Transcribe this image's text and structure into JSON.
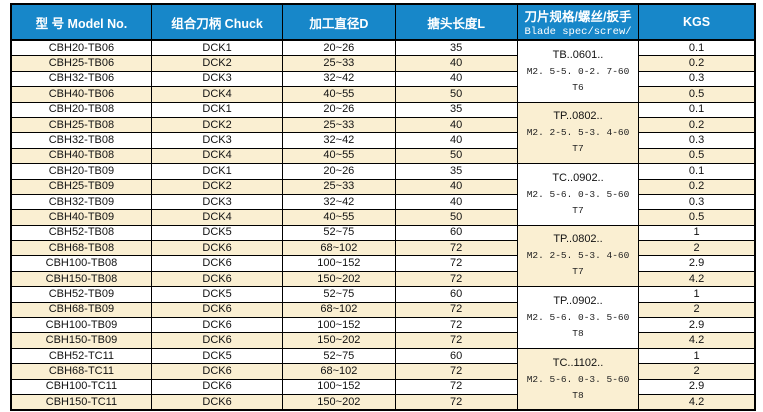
{
  "colors": {
    "header_bg": "#1787C9",
    "stripe_bg": "#FAEFD2",
    "border": "#000000"
  },
  "table": {
    "columns": [
      {
        "label": "型 号 Model No."
      },
      {
        "label": "组合刀柄 Chuck"
      },
      {
        "label": "加工直径D"
      },
      {
        "label": "搪头长度L"
      },
      {
        "label": "刀片规格/螺丝/扳手",
        "sublabel": "Blade spec/screw/"
      },
      {
        "label": "KGS"
      }
    ],
    "spec_groups": [
      {
        "blade": "TB..0601..",
        "screw": "M2. 5-5. 0-2. 7-60",
        "wrench": "T6",
        "rows": 4,
        "shaded": false
      },
      {
        "blade": "TP..0802..",
        "screw": "M2. 2-5. 5-3. 4-60",
        "wrench": "T7",
        "rows": 4,
        "shaded": true
      },
      {
        "blade": "TC..0902..",
        "screw": "M2. 5-6. 0-3. 5-60",
        "wrench": "T7",
        "rows": 4,
        "shaded": false
      },
      {
        "blade": "TP..0802..",
        "screw": "M2. 2-5. 5-3. 4-60",
        "wrench": "T7",
        "rows": 4,
        "shaded": true
      },
      {
        "blade": "TP..0902..",
        "screw": "M2. 5-6. 0-3. 5-60",
        "wrench": "T8",
        "rows": 4,
        "shaded": false
      },
      {
        "blade": "TC..1102..",
        "screw": "M2. 5-6. 0-3. 5-60",
        "wrench": "T8",
        "rows": 4,
        "shaded": true
      }
    ],
    "rows": [
      {
        "model": "CBH20-TB06",
        "chuck": "DCK1",
        "diameter": "20~26",
        "length": "35",
        "kgs": "0.1"
      },
      {
        "model": "CBH25-TB06",
        "chuck": "DCK2",
        "diameter": "25~33",
        "length": "40",
        "kgs": "0.2"
      },
      {
        "model": "CBH32-TB06",
        "chuck": "DCK3",
        "diameter": "32~42",
        "length": "40",
        "kgs": "0.3"
      },
      {
        "model": "CBH40-TB06",
        "chuck": "DCK4",
        "diameter": "40~55",
        "length": "50",
        "kgs": "0.5"
      },
      {
        "model": "CBH20-TB08",
        "chuck": "DCK1",
        "diameter": "20~26",
        "length": "35",
        "kgs": "0.1"
      },
      {
        "model": "CBH25-TB08",
        "chuck": "DCK2",
        "diameter": "25~33",
        "length": "40",
        "kgs": "0.2"
      },
      {
        "model": "CBH32-TB08",
        "chuck": "DCK3",
        "diameter": "32~42",
        "length": "40",
        "kgs": "0.3"
      },
      {
        "model": "CBH40-TB08",
        "chuck": "DCK4",
        "diameter": "40~55",
        "length": "50",
        "kgs": "0.5"
      },
      {
        "model": "CBH20-TB09",
        "chuck": "DCK1",
        "diameter": "20~26",
        "length": "35",
        "kgs": "0.1"
      },
      {
        "model": "CBH25-TB09",
        "chuck": "DCK2",
        "diameter": "25~33",
        "length": "40",
        "kgs": "0.2"
      },
      {
        "model": "CBH32-TB09",
        "chuck": "DCK3",
        "diameter": "32~42",
        "length": "40",
        "kgs": "0.3"
      },
      {
        "model": "CBH40-TB09",
        "chuck": "DCK4",
        "diameter": "40~55",
        "length": "50",
        "kgs": "0.5"
      },
      {
        "model": "CBH52-TB08",
        "chuck": "DCK5",
        "diameter": "52~75",
        "length": "60",
        "kgs": "1"
      },
      {
        "model": "CBH68-TB08",
        "chuck": "DCK6",
        "diameter": "68~102",
        "length": "72",
        "kgs": "2"
      },
      {
        "model": "CBH100-TB08",
        "chuck": "DCK6",
        "diameter": "100~152",
        "length": "72",
        "kgs": "2.9"
      },
      {
        "model": "CBH150-TB08",
        "chuck": "DCK6",
        "diameter": "150~202",
        "length": "72",
        "kgs": "4.2"
      },
      {
        "model": "CBH52-TB09",
        "chuck": "DCK5",
        "diameter": "52~75",
        "length": "60",
        "kgs": "1"
      },
      {
        "model": "CBH68-TB09",
        "chuck": "DCK6",
        "diameter": "68~102",
        "length": "72",
        "kgs": "2"
      },
      {
        "model": "CBH100-TB09",
        "chuck": "DCK6",
        "diameter": "100~152",
        "length": "72",
        "kgs": "2.9"
      },
      {
        "model": "CBH150-TB09",
        "chuck": "DCK6",
        "diameter": "150~202",
        "length": "72",
        "kgs": "4.2"
      },
      {
        "model": "CBH52-TC11",
        "chuck": "DCK5",
        "diameter": "52~75",
        "length": "60",
        "kgs": "1"
      },
      {
        "model": "CBH68-TC11",
        "chuck": "DCK6",
        "diameter": "68~102",
        "length": "72",
        "kgs": "2"
      },
      {
        "model": "CBH100-TC11",
        "chuck": "DCK6",
        "diameter": "100~152",
        "length": "72",
        "kgs": "2.9"
      },
      {
        "model": "CBH150-TC11",
        "chuck": "DCK6",
        "diameter": "150~202",
        "length": "72",
        "kgs": "4.2"
      }
    ]
  }
}
